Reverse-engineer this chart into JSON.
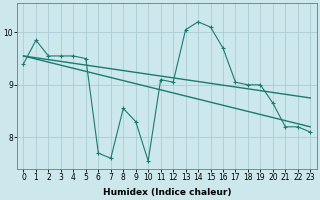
{
  "xlabel": "Humidex (Indice chaleur)",
  "bg_color": "#cce8ec",
  "grid_color": "#aaccd4",
  "line_color": "#1a7a6e",
  "series1_x": [
    0,
    1,
    2,
    3,
    4,
    5,
    6,
    7,
    8,
    9,
    10,
    11,
    12,
    13,
    14,
    15,
    16,
    17,
    18,
    19,
    20,
    21,
    22,
    23
  ],
  "series1_y": [
    9.4,
    9.85,
    9.55,
    9.55,
    9.55,
    9.5,
    7.7,
    7.6,
    8.55,
    8.3,
    7.55,
    9.1,
    9.05,
    10.05,
    10.2,
    10.1,
    9.7,
    9.05,
    9.0,
    9.0,
    8.65,
    8.2,
    8.2,
    8.1
  ],
  "series2_x": [
    0,
    23
  ],
  "series2_y": [
    9.55,
    8.75
  ],
  "series3_x": [
    0,
    23
  ],
  "series3_y": [
    9.55,
    8.2
  ],
  "xlim": [
    -0.5,
    23.5
  ],
  "ylim": [
    7.4,
    10.55
  ],
  "xticks": [
    0,
    1,
    2,
    3,
    4,
    5,
    6,
    7,
    8,
    9,
    10,
    11,
    12,
    13,
    14,
    15,
    16,
    17,
    18,
    19,
    20,
    21,
    22,
    23
  ],
  "yticks": [
    8,
    9,
    10
  ],
  "label_fontsize": 6.5,
  "tick_fontsize": 5.5
}
